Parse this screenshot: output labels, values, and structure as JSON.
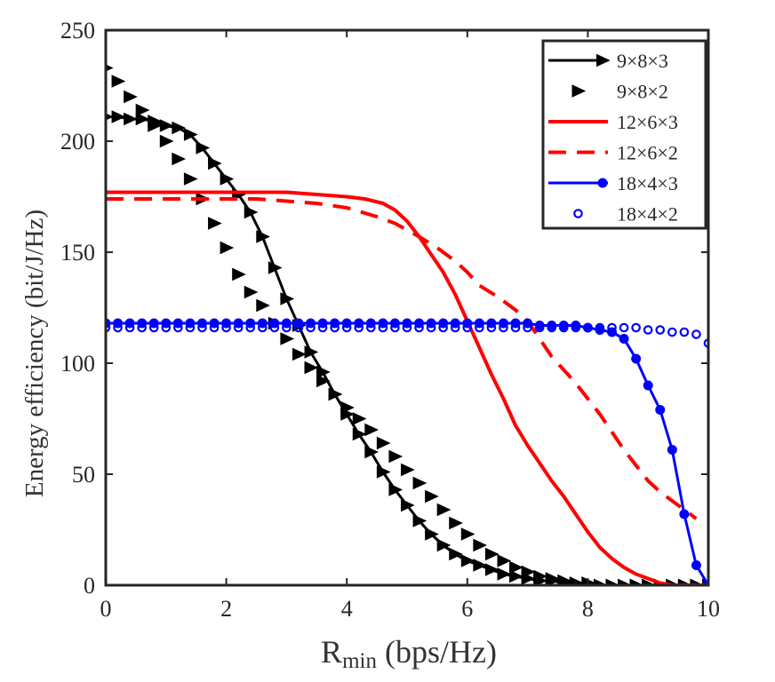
{
  "chart_data": {
    "type": "line",
    "title": "",
    "xlabel_main": "R",
    "xlabel_sub": "min",
    "xlabel_rest": " (bps/Hz)",
    "ylabel": "Energy efficiency (bit/J/Hz)",
    "xlim": [
      0,
      10
    ],
    "ylim": [
      0,
      250
    ],
    "xticks": [
      0,
      2,
      4,
      6,
      8,
      10
    ],
    "yticks": [
      0,
      50,
      100,
      150,
      200,
      250
    ],
    "legend_position": "top-right",
    "series": [
      {
        "name": "9×8×3",
        "color": "#000000",
        "line": "solid",
        "marker": "triangle-right",
        "x": [
          0,
          0.2,
          0.4,
          0.6,
          0.8,
          1.0,
          1.2,
          1.4,
          1.6,
          1.8,
          2.0,
          2.2,
          2.4,
          2.6,
          2.8,
          3.0,
          3.2,
          3.4,
          3.6,
          3.8,
          4.0,
          4.2,
          4.4,
          4.6,
          4.8,
          5.0,
          5.2,
          5.4,
          5.6,
          5.8,
          6.0,
          6.2,
          6.4,
          6.6,
          6.8,
          7.0,
          7.2,
          7.4,
          7.6,
          7.8,
          8.0,
          8.2,
          8.4,
          8.6,
          8.8,
          9.0,
          9.2,
          9.4,
          9.6,
          9.8,
          10.0
        ],
        "y": [
          211,
          211,
          210,
          210,
          209,
          207,
          206,
          203,
          197,
          190,
          183,
          176,
          168,
          157,
          143,
          129,
          117,
          105,
          96,
          86,
          77,
          68,
          60,
          51,
          43,
          36,
          29,
          23,
          18,
          14,
          11,
          9,
          7,
          5,
          4,
          3,
          2,
          2,
          1,
          1,
          1,
          0,
          0,
          0,
          0,
          0,
          0,
          0,
          0,
          0,
          0
        ]
      },
      {
        "name": "9×8×2",
        "color": "#000000",
        "line": "none",
        "marker": "triangle-right",
        "x": [
          0,
          0.2,
          0.4,
          0.6,
          0.8,
          1.0,
          1.2,
          1.4,
          1.6,
          1.8,
          2.0,
          2.2,
          2.4,
          2.6,
          2.8,
          3.0,
          3.2,
          3.4,
          3.6,
          3.8,
          4.0,
          4.2,
          4.4,
          4.6,
          4.8,
          5.0,
          5.2,
          5.4,
          5.6,
          5.8,
          6.0,
          6.2,
          6.4,
          6.6,
          6.8,
          7.0,
          7.2,
          7.4,
          7.6,
          7.8,
          8.0,
          8.2,
          8.4,
          8.6,
          8.8,
          9.0,
          9.2,
          9.4,
          9.6,
          9.8,
          10.0
        ],
        "y": [
          233,
          227,
          220,
          214,
          207,
          200,
          192,
          183,
          174,
          163,
          152,
          140,
          132,
          126,
          118,
          111,
          104,
          98,
          92,
          86,
          80,
          75,
          70,
          64,
          58,
          52,
          46,
          40,
          34,
          28,
          23,
          18,
          14,
          11,
          8,
          6,
          4,
          3,
          2,
          1,
          1,
          0,
          0,
          0,
          0,
          0,
          0,
          0,
          0,
          0,
          0
        ]
      },
      {
        "name": "12×6×3",
        "color": "#ff0000",
        "line": "solid",
        "marker": "none",
        "x": [
          0,
          0.5,
          1.0,
          1.5,
          2.0,
          2.5,
          3.0,
          3.5,
          4.0,
          4.3,
          4.6,
          4.8,
          5.0,
          5.2,
          5.4,
          5.6,
          5.8,
          6.0,
          6.2,
          6.4,
          6.6,
          6.8,
          7.0,
          7.2,
          7.4,
          7.6,
          7.8,
          8.0,
          8.2,
          8.4,
          8.6,
          8.8,
          9.0,
          9.2,
          9.4,
          9.6,
          9.8,
          10.0
        ],
        "y": [
          177,
          177,
          177,
          177,
          177,
          177,
          177,
          176,
          175,
          174,
          172,
          169,
          164,
          157,
          149,
          141,
          131,
          119,
          107,
          95,
          84,
          72,
          63,
          55,
          47,
          40,
          32,
          24,
          17,
          12,
          8,
          5,
          3,
          1,
          0,
          0,
          0,
          0
        ]
      },
      {
        "name": "12×6×2",
        "color": "#ff0000",
        "line": "dashed",
        "marker": "none",
        "x": [
          0,
          0.5,
          1.0,
          1.5,
          2.0,
          2.5,
          3.0,
          3.5,
          4.0,
          4.5,
          4.8,
          5.0,
          5.2,
          5.5,
          5.8,
          6.0,
          6.2,
          6.5,
          6.8,
          7.0,
          7.2,
          7.4,
          7.6,
          7.8,
          8.0,
          8.2,
          8.4,
          8.6,
          8.8,
          9.0,
          9.2,
          9.4,
          9.6,
          9.8
        ],
        "y": [
          174,
          174,
          174,
          174,
          174,
          174,
          173,
          172,
          170,
          166,
          163,
          160,
          157,
          152,
          146,
          141,
          135,
          130,
          124,
          119,
          111,
          103,
          97,
          91,
          84,
          77,
          69,
          61,
          54,
          47,
          42,
          38,
          34,
          30
        ]
      },
      {
        "name": "18×4×3",
        "color": "#0000ff",
        "line": "solid",
        "marker": "filled-circle",
        "x": [
          0,
          0.2,
          0.4,
          0.6,
          0.8,
          1.0,
          1.2,
          1.4,
          1.6,
          1.8,
          2.0,
          2.2,
          2.4,
          2.6,
          2.8,
          3.0,
          3.2,
          3.4,
          3.6,
          3.8,
          4.0,
          4.2,
          4.4,
          4.6,
          4.8,
          5.0,
          5.2,
          5.4,
          5.6,
          5.8,
          6.0,
          6.2,
          6.4,
          6.6,
          6.8,
          7.0,
          7.2,
          7.4,
          7.6,
          7.8,
          8.0,
          8.2,
          8.4,
          8.6,
          8.8,
          9.0,
          9.2,
          9.4,
          9.6,
          9.8,
          10.0
        ],
        "y": [
          118,
          118,
          118,
          118,
          118,
          118,
          118,
          118,
          118,
          118,
          118,
          118,
          118,
          118,
          118,
          118,
          118,
          118,
          118,
          118,
          118,
          118,
          118,
          118,
          118,
          118,
          118,
          118,
          118,
          118,
          118,
          118,
          118,
          118,
          118,
          118,
          117,
          117,
          117,
          117,
          116,
          115,
          114,
          111,
          102,
          90,
          79,
          61,
          32,
          9,
          0
        ]
      },
      {
        "name": "18×4×2",
        "color": "#0000ff",
        "line": "none",
        "marker": "open-circle",
        "x": [
          0,
          0.2,
          0.4,
          0.6,
          0.8,
          1.0,
          1.2,
          1.4,
          1.6,
          1.8,
          2.0,
          2.2,
          2.4,
          2.6,
          2.8,
          3.0,
          3.2,
          3.4,
          3.6,
          3.8,
          4.0,
          4.2,
          4.4,
          4.6,
          4.8,
          5.0,
          5.2,
          5.4,
          5.6,
          5.8,
          6.0,
          6.2,
          6.4,
          6.6,
          6.8,
          7.0,
          7.2,
          7.4,
          7.6,
          7.8,
          8.0,
          8.2,
          8.4,
          8.6,
          8.8,
          9.0,
          9.2,
          9.4,
          9.6,
          9.8,
          10.0
        ],
        "y": [
          116,
          116,
          116,
          116,
          116,
          116,
          116,
          116,
          116,
          116,
          116,
          116,
          116,
          116,
          116,
          116,
          116,
          116,
          116,
          116,
          116,
          116,
          116,
          116,
          116,
          116,
          116,
          116,
          116,
          116,
          116,
          116,
          116,
          116,
          116,
          116,
          116,
          116,
          116,
          116,
          116,
          116,
          116,
          116,
          116,
          115,
          115,
          114,
          114,
          113,
          109
        ]
      }
    ]
  }
}
